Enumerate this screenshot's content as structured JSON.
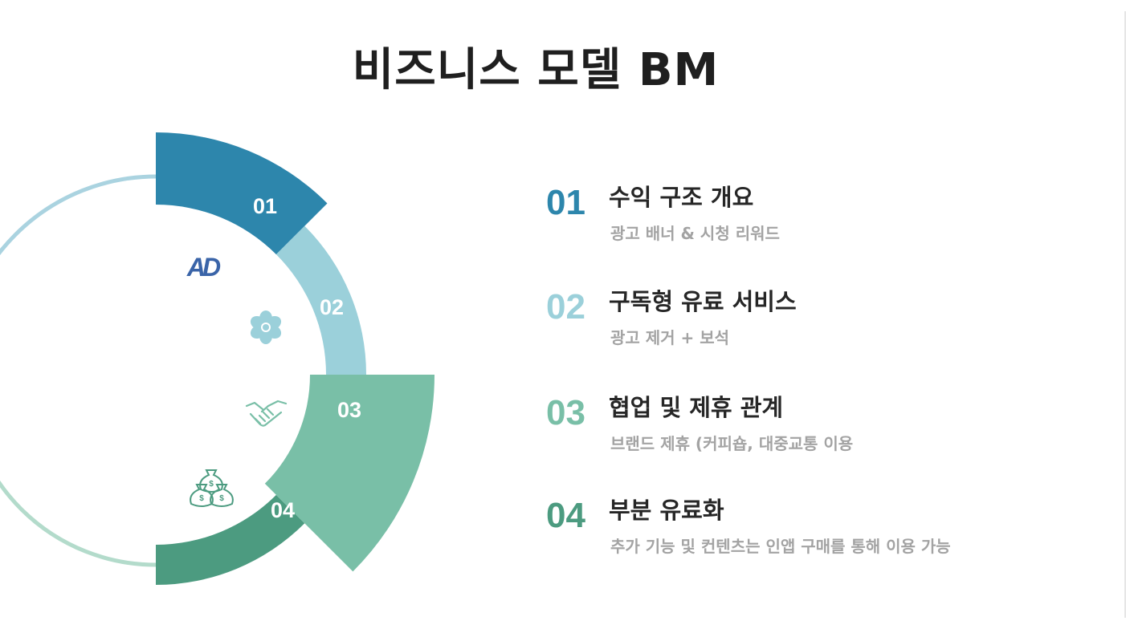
{
  "title": "비즈니스 모델 BM",
  "colors": {
    "seg01": "#2d86ac",
    "seg02": "#9bd0da",
    "seg03": "#79bfa7",
    "seg04": "#4c9b80",
    "ring_top": "#aad3e0",
    "ring_bottom": "#b3dbcb",
    "icon_ad": "#3a64a8"
  },
  "segments": [
    {
      "label": "01",
      "icon": "ad-icon"
    },
    {
      "label": "02",
      "icon": "flower-icon"
    },
    {
      "label": "03",
      "icon": "handshake-icon"
    },
    {
      "label": "04",
      "icon": "money-bags-icon"
    }
  ],
  "icon_ad_text": "AD",
  "items": [
    {
      "number": "01",
      "heading": "수익 구조 개요",
      "detail": "광고 배너 & 시청 리워드"
    },
    {
      "number": "02",
      "heading": "구독형 유료 서비스",
      "detail": "광고 제거 + 보석"
    },
    {
      "number": "03",
      "heading": "협업 및 제휴 관계",
      "detail": "브랜드 제휴 (커피숍, 대중교통 이용"
    },
    {
      "number": "04",
      "heading": "부분 유료화",
      "detail": "추가 기능 및 컨텐츠는 인앱 구매를 통해 이용 가능"
    }
  ]
}
